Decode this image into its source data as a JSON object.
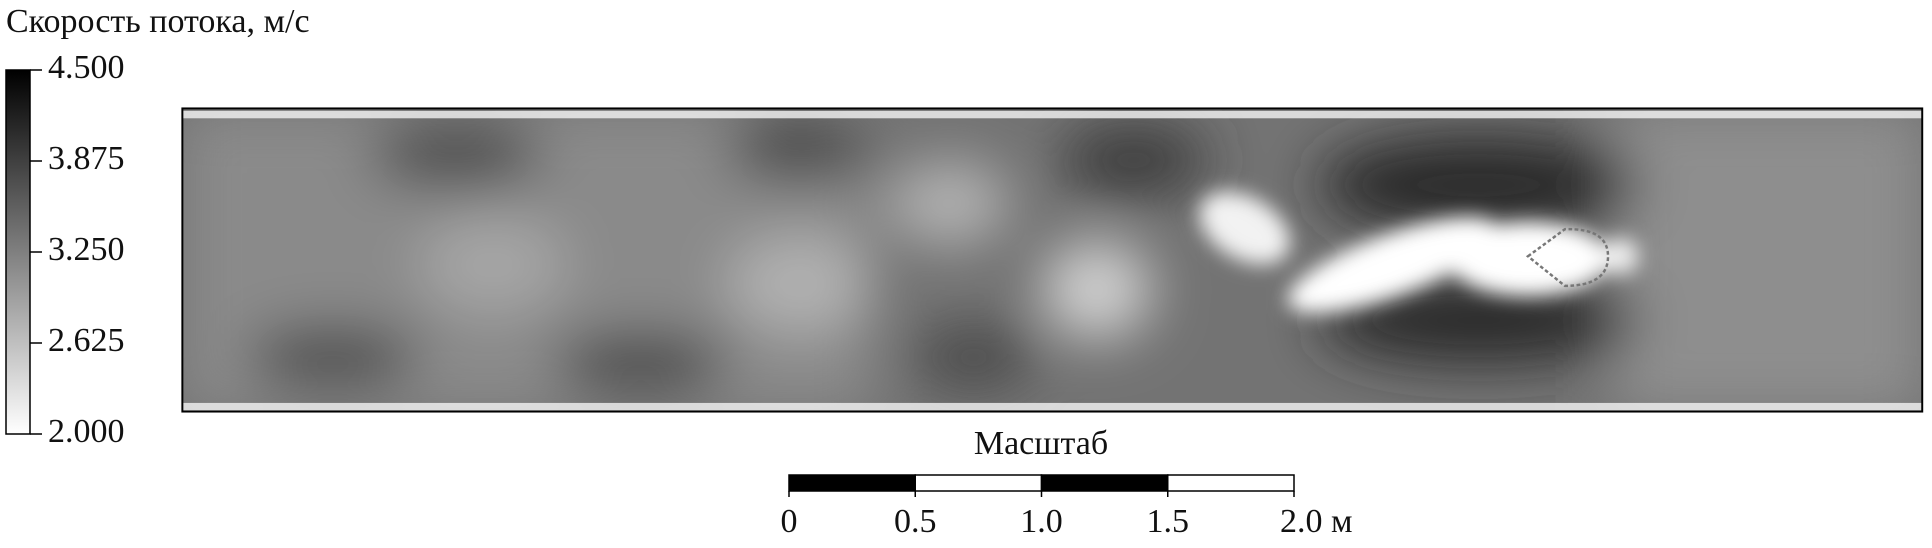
{
  "chart_data": {
    "type": "field",
    "title": "Скорость потока, м/с",
    "clim": [
      2.0,
      4.5
    ],
    "cticks": [
      {
        "value": 4.5,
        "label": "4.500"
      },
      {
        "value": 3.875,
        "label": "3.875"
      },
      {
        "value": 3.25,
        "label": "3.250"
      },
      {
        "value": 2.625,
        "label": "2.625"
      },
      {
        "value": 2.0,
        "label": "2.000"
      }
    ],
    "colormap": [
      "#ffffff",
      "#000000"
    ],
    "scale_title": "Масштаб",
    "scale_lim": [
      0,
      2
    ],
    "scale_ticks": [
      0,
      {
        "value": 0.5,
        "label": "0.5"
      },
      {
        "value": 1,
        "label": "1.0"
      },
      {
        "value": 1.5,
        "label": "1.5"
      },
      {
        "value": 2,
        "label": "2.0 м"
      }
    ]
  }
}
